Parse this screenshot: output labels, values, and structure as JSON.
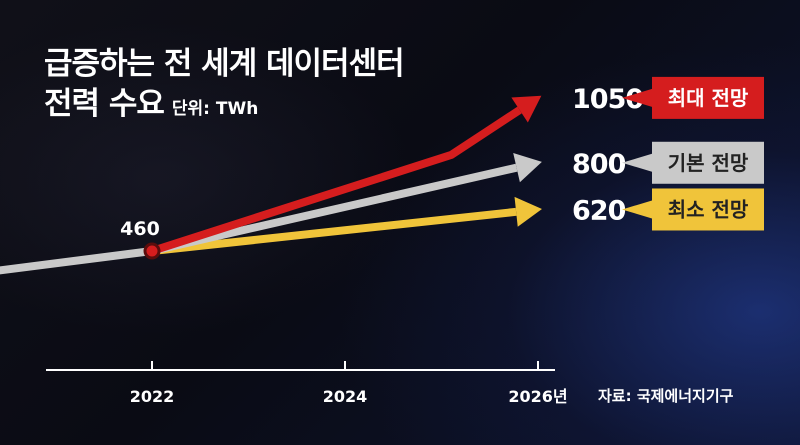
{
  "title": {
    "line1": "급증하는 전 세계 데이터센터",
    "line2": "전력 수요",
    "unit": "단위: TWh"
  },
  "source": "자료: 국제에너지기구",
  "colors": {
    "max": "#d51d1e",
    "base": "#c9c9c9",
    "min": "#f0c43a",
    "axis": "#ffffff"
  },
  "chart_data": {
    "type": "line",
    "title": "급증하는 전 세계 데이터센터 전력 수요",
    "unit": "TWh",
    "x_ticks": [
      "2022",
      "2024",
      "2026년"
    ],
    "x_tick_values": [
      2022,
      2024,
      2026
    ],
    "start": {
      "x": 2022,
      "y": 460,
      "label": "460"
    },
    "series": [
      {
        "name": "최대 전망",
        "color": "#d51d1e",
        "tag_text_color": "#ffffff",
        "points": [
          [
            2022,
            460
          ],
          [
            2025.1,
            830
          ],
          [
            2026,
            1050
          ]
        ],
        "end_label": "1050"
      },
      {
        "name": "기본 전망",
        "color": "#c9c9c9",
        "tag_text_color": "#222222",
        "points": [
          [
            2022,
            460
          ],
          [
            2026,
            800
          ]
        ],
        "end_label": "800"
      },
      {
        "name": "최소 전망",
        "color": "#f0c43a",
        "tag_text_color": "#222222",
        "points": [
          [
            2022,
            460
          ],
          [
            2026,
            620
          ]
        ],
        "end_label": "620"
      }
    ],
    "baseline_segment": {
      "color": "#c9c9c9",
      "points": [
        [
          2020.1,
          370
        ],
        [
          2022,
          460
        ]
      ]
    },
    "grid": false,
    "legend": "right"
  }
}
